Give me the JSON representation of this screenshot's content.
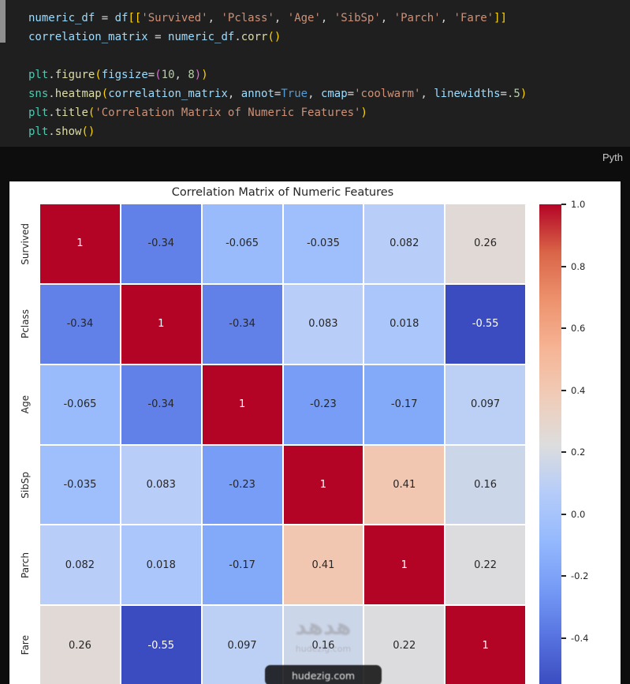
{
  "code_cell": {
    "language_label": "Pyth",
    "lines": [
      {
        "tokens": [
          [
            "numeric_df",
            "v"
          ],
          [
            " = ",
            "o"
          ],
          [
            "df",
            "v"
          ],
          [
            "[[",
            "b1"
          ],
          [
            "'Survived'",
            "s"
          ],
          [
            ", ",
            "o"
          ],
          [
            "'Pclass'",
            "s"
          ],
          [
            ", ",
            "o"
          ],
          [
            "'Age'",
            "s"
          ],
          [
            ", ",
            "o"
          ],
          [
            "'SibSp'",
            "s"
          ],
          [
            ", ",
            "o"
          ],
          [
            "'Parch'",
            "s"
          ],
          [
            ", ",
            "o"
          ],
          [
            "'Fare'",
            "s"
          ],
          [
            "]]",
            "b1"
          ]
        ]
      },
      {
        "tokens": [
          [
            "correlation_matrix",
            "v"
          ],
          [
            " = ",
            "o"
          ],
          [
            "numeric_df",
            "v"
          ],
          [
            ".",
            "o"
          ],
          [
            "corr",
            "f"
          ],
          [
            "()",
            "b1"
          ]
        ]
      },
      {
        "tokens": []
      },
      {
        "tokens": [
          [
            "plt",
            "m"
          ],
          [
            ".",
            "o"
          ],
          [
            "figure",
            "f"
          ],
          [
            "(",
            "b1"
          ],
          [
            "figsize",
            "v"
          ],
          [
            "=",
            "o"
          ],
          [
            "(",
            "b2"
          ],
          [
            "10",
            "n"
          ],
          [
            ", ",
            "o"
          ],
          [
            "8",
            "n"
          ],
          [
            ")",
            "b2"
          ],
          [
            ")",
            "b1"
          ]
        ]
      },
      {
        "tokens": [
          [
            "sns",
            "m"
          ],
          [
            ".",
            "o"
          ],
          [
            "heatmap",
            "f"
          ],
          [
            "(",
            "b1"
          ],
          [
            "correlation_matrix",
            "v"
          ],
          [
            ", ",
            "o"
          ],
          [
            "annot",
            "v"
          ],
          [
            "=",
            "o"
          ],
          [
            "True",
            "k"
          ],
          [
            ", ",
            "o"
          ],
          [
            "cmap",
            "v"
          ],
          [
            "=",
            "o"
          ],
          [
            "'coolwarm'",
            "s"
          ],
          [
            ", ",
            "o"
          ],
          [
            "linewidths",
            "v"
          ],
          [
            "=",
            "o"
          ],
          [
            ".5",
            "n"
          ],
          [
            ")",
            "b1"
          ]
        ]
      },
      {
        "tokens": [
          [
            "plt",
            "m"
          ],
          [
            ".",
            "o"
          ],
          [
            "title",
            "f"
          ],
          [
            "(",
            "b1"
          ],
          [
            "'Correlation Matrix of Numeric Features'",
            "s"
          ],
          [
            ")",
            "b1"
          ]
        ]
      },
      {
        "tokens": [
          [
            "plt",
            "m"
          ],
          [
            ".",
            "o"
          ],
          [
            "show",
            "f"
          ],
          [
            "()",
            "b1"
          ]
        ]
      }
    ]
  },
  "chart_data": {
    "type": "heatmap",
    "title": "Correlation Matrix of Numeric Features",
    "labels": [
      "Survived",
      "Pclass",
      "Age",
      "SibSp",
      "Parch",
      "Fare"
    ],
    "matrix": [
      [
        1,
        -0.34,
        -0.065,
        -0.035,
        0.082,
        0.26
      ],
      [
        -0.34,
        1,
        -0.34,
        0.083,
        0.018,
        -0.55
      ],
      [
        -0.065,
        -0.34,
        1,
        -0.23,
        -0.17,
        0.097
      ],
      [
        -0.035,
        0.083,
        -0.23,
        1,
        0.41,
        0.16
      ],
      [
        0.082,
        0.018,
        -0.17,
        0.41,
        1,
        0.22
      ],
      [
        0.26,
        -0.55,
        0.097,
        0.16,
        0.22,
        1
      ]
    ],
    "cmap": "coolwarm",
    "vmin": -0.55,
    "vmax": 1.0,
    "annot": true,
    "grid_linewidth": 0.5,
    "legend_position": "right",
    "colorbar_ticks": [
      1.0,
      0.8,
      0.6,
      0.4,
      0.2,
      0.0,
      -0.2,
      -0.4
    ],
    "colorbar_tick_labels": [
      "1.0",
      "0.8",
      "0.6",
      "0.4",
      "0.2",
      "0.0",
      "-0.2",
      "-0.4"
    ]
  },
  "watermark": {
    "arabic_text": "هدهد",
    "domain_text": "hudezig.com"
  },
  "colors": {
    "heatmap_high": "#b40426",
    "heatmap_low": "#3b4cc0",
    "code_bg": "#1f1f1f",
    "page_bg": "#0d0d0d",
    "figure_bg": "#ffffff"
  }
}
